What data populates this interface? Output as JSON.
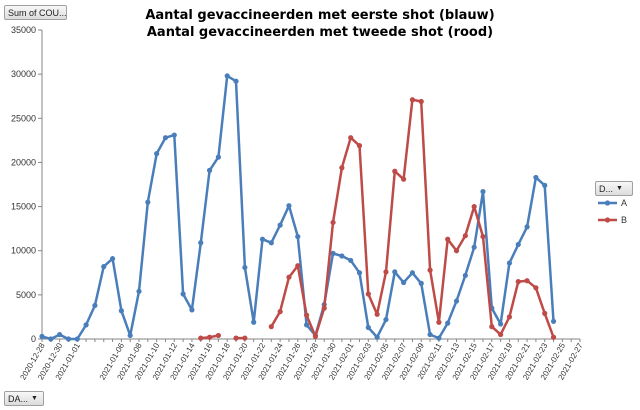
{
  "pivot": {
    "values_button": "Sum of COU...",
    "axis_button": "DA...",
    "legend_button": "D..."
  },
  "chart_data": {
    "type": "line",
    "title": "Aantal gevaccineerden met eerste shot (blauw)",
    "subtitle": "Aantal gevaccineerden met tweede shot (rood)",
    "xlabel": "",
    "ylabel": "",
    "ylim": [
      0,
      35000
    ],
    "yticks": [
      0,
      5000,
      10000,
      15000,
      20000,
      25000,
      30000,
      35000
    ],
    "grid": false,
    "legend_position": "right",
    "x": [
      "2020-12-28",
      "2020-12-29",
      "2020-12-30",
      "2020-12-31",
      "2021-01-01",
      "2021-01-02",
      "2021-01-03",
      "2021-01-04",
      "2021-01-05",
      "2021-01-06",
      "2021-01-07",
      "2021-01-08",
      "2021-01-09",
      "2021-01-10",
      "2021-01-11",
      "2021-01-12",
      "2021-01-13",
      "2021-01-14",
      "2021-01-15",
      "2021-01-16",
      "2021-01-17",
      "2021-01-18",
      "2021-01-19",
      "2021-01-20",
      "2021-01-21",
      "2021-01-22",
      "2021-01-23",
      "2021-01-24",
      "2021-01-25",
      "2021-01-26",
      "2021-01-27",
      "2021-01-28",
      "2021-01-29",
      "2021-01-30",
      "2021-01-31",
      "2021-02-01",
      "2021-02-02",
      "2021-02-03",
      "2021-02-04",
      "2021-02-05",
      "2021-02-06",
      "2021-02-07",
      "2021-02-08",
      "2021-02-09",
      "2021-02-10",
      "2021-02-11",
      "2021-02-12",
      "2021-02-13",
      "2021-02-14",
      "2021-02-15",
      "2021-02-16",
      "2021-02-17",
      "2021-02-18",
      "2021-02-19",
      "2021-02-20",
      "2021-02-21",
      "2021-02-22",
      "2021-02-23",
      "2021-02-24",
      "2021-02-25",
      "2021-02-26",
      "2021-02-27"
    ],
    "x_tick_labels": [
      "2020-12-28",
      "2020-12-30",
      "2021-01-01",
      "2021-01-06",
      "2021-01-08",
      "2021-01-10",
      "2021-01-12",
      "2021-01-14",
      "2021-01-16",
      "2021-01-18",
      "2021-01-20",
      "2021-01-22",
      "2021-01-24",
      "2021-01-26",
      "2021-01-28",
      "2021-01-30",
      "2021-02-01",
      "2021-02-03",
      "2021-02-05",
      "2021-02-07",
      "2021-02-09",
      "2021-02-11",
      "2021-02-13",
      "2021-02-15",
      "2021-02-17",
      "2021-02-19",
      "2021-02-21",
      "2021-02-23",
      "2021-02-25",
      "2021-02-27"
    ],
    "series": [
      {
        "name": "A",
        "color": "#4a7ebb",
        "values": [
          300,
          0,
          500,
          0,
          0,
          1600,
          3800,
          8200,
          9100,
          3200,
          400,
          5400,
          15500,
          21000,
          22800,
          23100,
          5100,
          3300,
          10900,
          19100,
          20600,
          29800,
          29200,
          8100,
          1900,
          11300,
          10900,
          12900,
          15100,
          11600,
          1600,
          400,
          3900,
          9700,
          9400,
          8900,
          7500,
          1300,
          200,
          2200,
          7600,
          6400,
          7500,
          6300,
          500,
          100,
          1800,
          4300,
          7200,
          10400,
          16700,
          3500,
          1700,
          8600,
          10700,
          12700,
          18300,
          17400,
          2000,
          null,
          null,
          null
        ]
      },
      {
        "name": "B",
        "color": "#be4b48",
        "values": [
          null,
          null,
          null,
          null,
          null,
          null,
          null,
          null,
          null,
          null,
          null,
          null,
          null,
          null,
          null,
          null,
          null,
          null,
          100,
          200,
          400,
          null,
          100,
          100,
          null,
          null,
          1400,
          3100,
          7000,
          8300,
          2700,
          300,
          3500,
          13200,
          19400,
          22800,
          21900,
          5100,
          2800,
          7600,
          19000,
          18100,
          27100,
          26900,
          7800,
          1900,
          11300,
          10000,
          11700,
          15000,
          11600,
          1400,
          500,
          2500,
          6500,
          6600,
          5800,
          2900,
          200,
          null,
          null,
          null
        ]
      }
    ]
  }
}
